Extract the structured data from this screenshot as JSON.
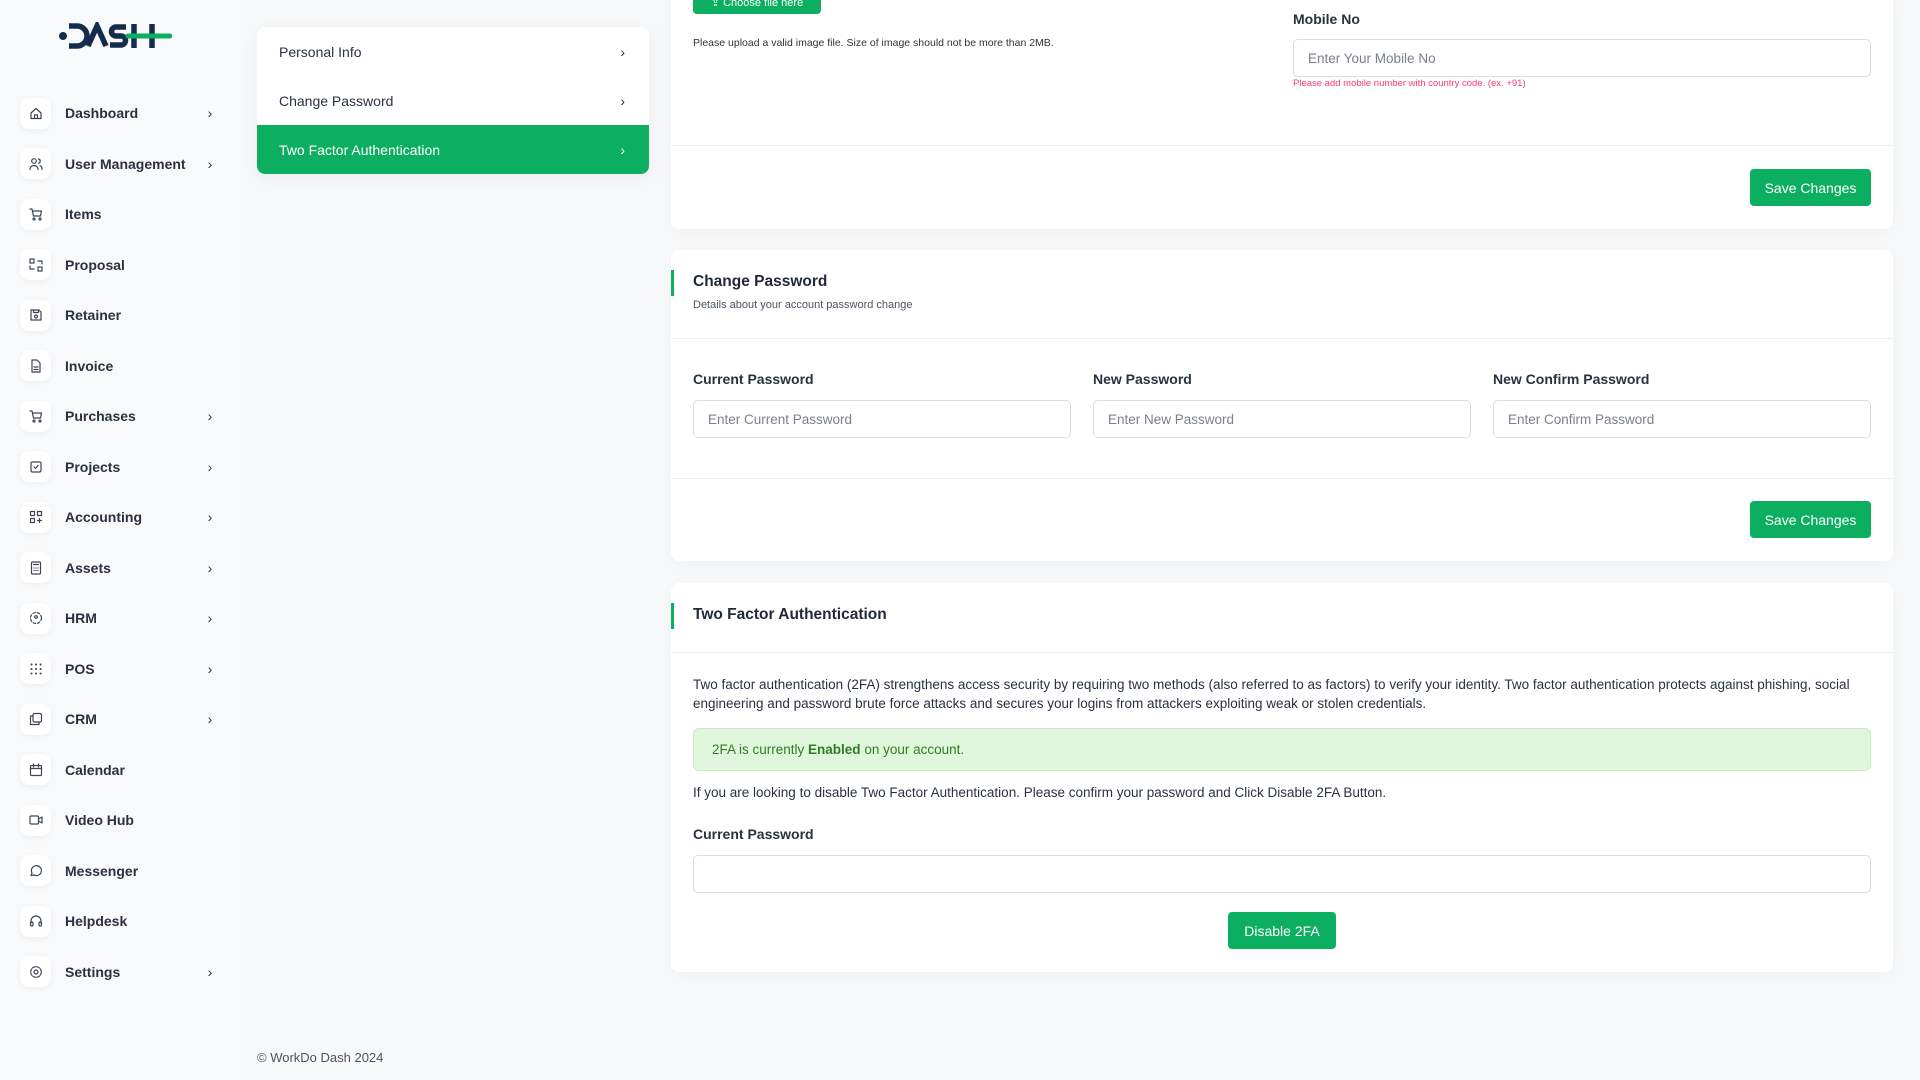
{
  "brand": {
    "logo_text": "DASH",
    "accent": "#0caf60"
  },
  "sidebar": {
    "items": [
      {
        "label": "Dashboard",
        "icon": "home-icon",
        "chevron": true
      },
      {
        "label": "User Management",
        "icon": "users-icon",
        "chevron": true
      },
      {
        "label": "Items",
        "icon": "cart-icon",
        "chevron": false
      },
      {
        "label": "Proposal",
        "icon": "exchange-icon",
        "chevron": false
      },
      {
        "label": "Retainer",
        "icon": "floppy-icon",
        "chevron": false
      },
      {
        "label": "Invoice",
        "icon": "file-invoice-icon",
        "chevron": false
      },
      {
        "label": "Purchases",
        "icon": "cart-icon",
        "chevron": true
      },
      {
        "label": "Projects",
        "icon": "square-check-icon",
        "chevron": true
      },
      {
        "label": "Accounting",
        "icon": "apps-icon",
        "chevron": true
      },
      {
        "label": "Assets",
        "icon": "calculator-icon",
        "chevron": true
      },
      {
        "label": "HRM",
        "icon": "hrm-icon",
        "chevron": true
      },
      {
        "label": "POS",
        "icon": "grid-dots-icon",
        "chevron": true
      },
      {
        "label": "CRM",
        "icon": "layers-icon",
        "chevron": true
      },
      {
        "label": "Calendar",
        "icon": "calendar-icon",
        "chevron": false
      },
      {
        "label": "Video Hub",
        "icon": "video-icon",
        "chevron": false
      },
      {
        "label": "Messenger",
        "icon": "message-icon",
        "chevron": false
      },
      {
        "label": "Helpdesk",
        "icon": "headset-icon",
        "chevron": false
      },
      {
        "label": "Settings",
        "icon": "gear-icon",
        "chevron": true
      }
    ]
  },
  "submenu": {
    "items": [
      {
        "label": "Personal Info",
        "active": false
      },
      {
        "label": "Change Password",
        "active": false
      },
      {
        "label": "Two Factor Authentication",
        "active": true
      }
    ]
  },
  "personal": {
    "choose_file": "Choose file here",
    "upload_hint": "Please upload a valid image file. Size of image should not be more than 2MB.",
    "mobile_label": "Mobile No",
    "mobile_placeholder": "Enter Your Mobile No",
    "mobile_hint": "Please add mobile number with country code. (ex. +91)",
    "save": "Save Changes"
  },
  "change_password": {
    "title": "Change Password",
    "subtitle": "Details about your account password change",
    "fields": [
      {
        "label": "Current Password",
        "placeholder": "Enter Current Password"
      },
      {
        "label": "New Password",
        "placeholder": "Enter New Password"
      },
      {
        "label": "New Confirm Password",
        "placeholder": "Enter Confirm Password"
      }
    ],
    "save": "Save Changes"
  },
  "two_factor": {
    "title": "Two Factor Authentication",
    "description": "Two factor authentication (2FA) strengthens access security by requiring two methods (also referred to as factors) to verify your identity. Two factor authentication protects against phishing, social engineering and password brute force attacks and secures your logins from attackers exploiting weak or stolen credentials.",
    "status_prefix": "2FA is currently ",
    "status_value": "Enabled",
    "status_suffix": " on your account.",
    "instruction": "If you are looking to disable Two Factor Authentication. Please confirm your password and Click Disable 2FA Button.",
    "password_label": "Current Password",
    "password_value": "",
    "disable_button": "Disable 2FA"
  },
  "footer": {
    "copyright": "© WorkDo Dash 2024"
  }
}
